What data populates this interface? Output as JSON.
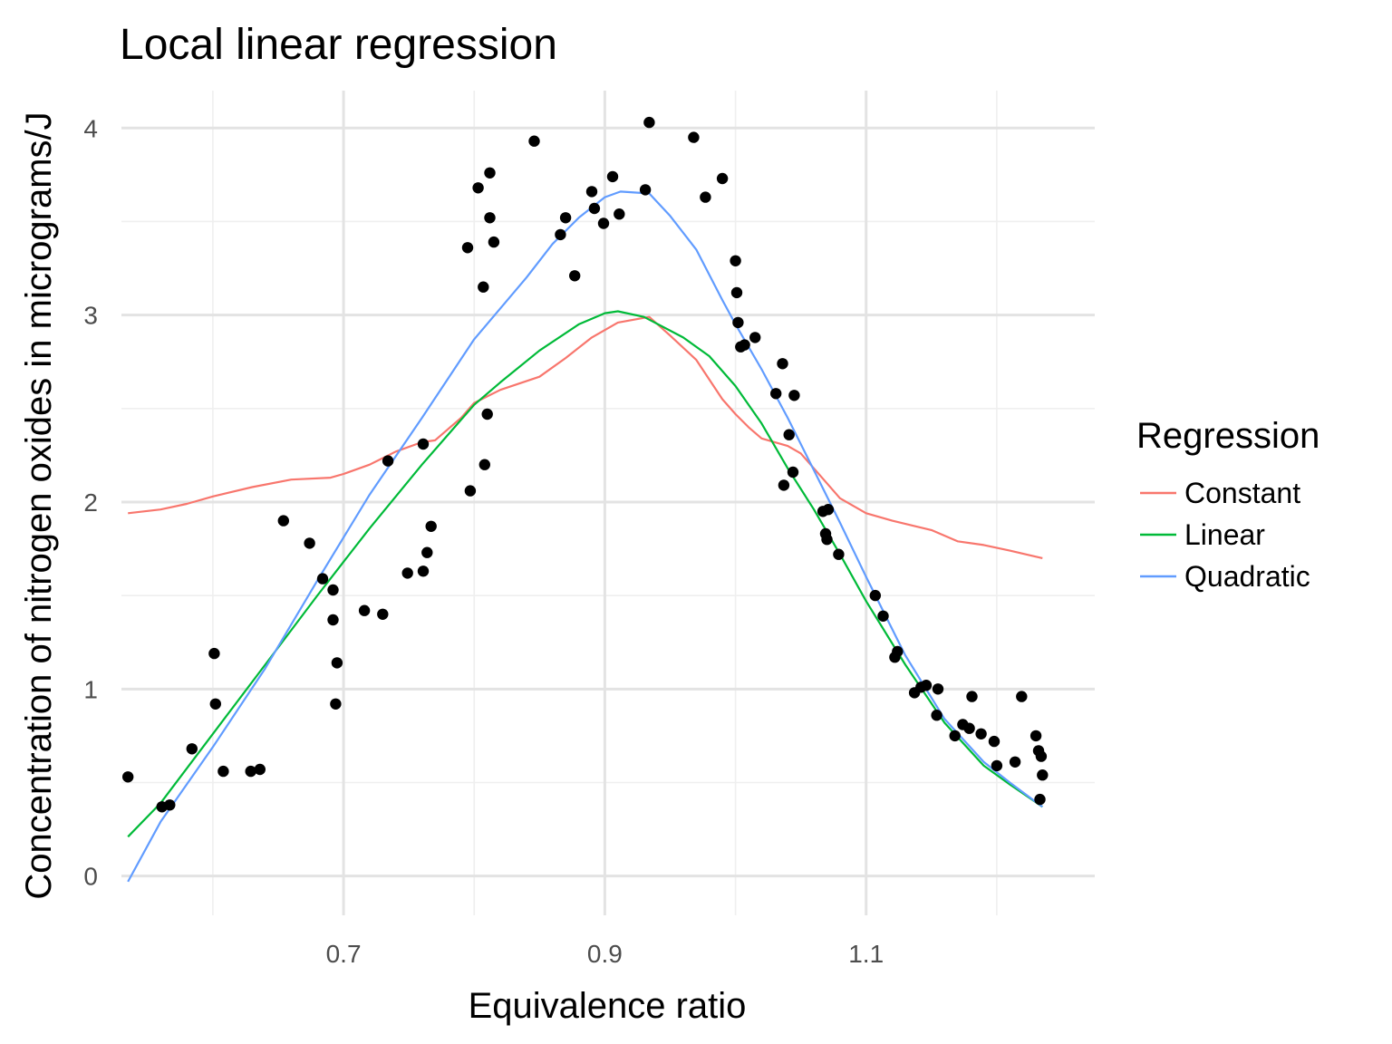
{
  "chart_data": {
    "type": "scatter",
    "title": "Local linear regression",
    "xlabel": "Equivalence ratio",
    "ylabel": "Concentration of nitrogen oxides in micrograms/J",
    "xlim": [
      0.53,
      1.275
    ],
    "ylim": [
      -0.21,
      4.2
    ],
    "x_ticks": [
      {
        "value": 0.7,
        "label": "0.7"
      },
      {
        "value": 0.9,
        "label": "0.9"
      },
      {
        "value": 1.1,
        "label": "1.1"
      }
    ],
    "x_minor": [
      0.6,
      0.8,
      1.0,
      1.2
    ],
    "y_ticks": [
      {
        "value": 0,
        "label": "0"
      },
      {
        "value": 1,
        "label": "1"
      },
      {
        "value": 2,
        "label": "2"
      },
      {
        "value": 3,
        "label": "3"
      },
      {
        "value": 4,
        "label": "4"
      }
    ],
    "y_minor": [
      0.5,
      1.5,
      2.5,
      3.5
    ],
    "grid": true,
    "legend": {
      "title": "Regression",
      "position": "right",
      "entries": [
        {
          "label": "Constant",
          "color": "#f8766d"
        },
        {
          "label": "Linear",
          "color": "#00ba38"
        },
        {
          "label": "Quadratic",
          "color": "#619cff"
        }
      ]
    },
    "points": {
      "x": [
        0.535,
        0.561,
        0.567,
        0.584,
        0.601,
        0.602,
        0.608,
        0.629,
        0.636,
        0.654,
        0.674,
        0.684,
        0.692,
        0.692,
        0.695,
        0.694,
        0.716,
        0.73,
        0.734,
        0.749,
        0.761,
        0.761,
        0.764,
        0.767,
        0.795,
        0.797,
        0.803,
        0.807,
        0.808,
        0.81,
        0.812,
        0.812,
        0.815,
        0.846,
        0.866,
        0.87,
        0.877,
        0.89,
        0.892,
        0.899,
        0.906,
        0.911,
        0.931,
        0.934,
        0.968,
        0.977,
        0.99,
        1.0,
        1.001,
        1.002,
        1.004,
        1.007,
        1.015,
        1.031,
        1.036,
        1.037,
        1.041,
        1.044,
        1.045,
        1.067,
        1.069,
        1.07,
        1.071,
        1.079,
        1.107,
        1.113,
        1.122,
        1.124,
        1.137,
        1.142,
        1.146,
        1.154,
        1.155,
        1.168,
        1.174,
        1.179,
        1.181,
        1.188,
        1.198,
        1.2,
        1.214,
        1.219,
        1.23,
        1.232,
        1.233,
        1.234,
        1.235
      ],
      "y": [
        0.53,
        0.37,
        0.38,
        0.68,
        1.19,
        0.92,
        0.56,
        0.56,
        0.57,
        1.9,
        1.78,
        1.59,
        1.37,
        1.53,
        1.14,
        0.92,
        1.42,
        1.4,
        2.22,
        1.62,
        1.63,
        2.31,
        1.73,
        1.87,
        3.36,
        2.06,
        3.68,
        3.15,
        2.2,
        2.47,
        3.76,
        3.52,
        3.39,
        3.93,
        3.43,
        3.52,
        3.21,
        3.66,
        3.57,
        3.49,
        3.74,
        3.54,
        3.67,
        4.03,
        3.95,
        3.63,
        3.73,
        3.29,
        3.12,
        2.96,
        2.83,
        2.84,
        2.88,
        2.58,
        2.74,
        2.09,
        2.36,
        2.16,
        2.57,
        1.95,
        1.83,
        1.8,
        1.96,
        1.72,
        1.5,
        1.39,
        1.17,
        1.2,
        0.98,
        1.01,
        1.02,
        0.86,
        1.0,
        0.75,
        0.81,
        0.79,
        0.96,
        0.76,
        0.72,
        0.59,
        0.61,
        0.96,
        0.75,
        0.67,
        0.41,
        0.64,
        0.54
      ]
    },
    "series": [
      {
        "name": "Constant",
        "color": "#f8766d",
        "x": [
          0.535,
          0.56,
          0.58,
          0.6,
          0.63,
          0.66,
          0.69,
          0.7,
          0.72,
          0.74,
          0.76,
          0.77,
          0.79,
          0.8,
          0.82,
          0.85,
          0.87,
          0.89,
          0.91,
          0.934,
          0.95,
          0.97,
          0.99,
          1.0,
          1.01,
          1.02,
          1.04,
          1.05,
          1.07,
          1.08,
          1.1,
          1.12,
          1.15,
          1.17,
          1.19,
          1.21,
          1.235
        ],
        "y": [
          1.94,
          1.96,
          1.99,
          2.03,
          2.08,
          2.12,
          2.13,
          2.15,
          2.2,
          2.27,
          2.32,
          2.33,
          2.45,
          2.53,
          2.6,
          2.67,
          2.77,
          2.88,
          2.96,
          2.99,
          2.89,
          2.76,
          2.55,
          2.47,
          2.4,
          2.34,
          2.3,
          2.26,
          2.1,
          2.02,
          1.94,
          1.9,
          1.85,
          1.79,
          1.77,
          1.74,
          1.7
        ]
      },
      {
        "name": "Linear",
        "color": "#00ba38",
        "x": [
          0.535,
          0.56,
          0.6,
          0.64,
          0.68,
          0.72,
          0.76,
          0.8,
          0.82,
          0.85,
          0.88,
          0.9,
          0.91,
          0.93,
          0.96,
          0.98,
          1.0,
          1.02,
          1.04,
          1.06,
          1.08,
          1.1,
          1.13,
          1.16,
          1.19,
          1.21,
          1.235
        ],
        "y": [
          0.21,
          0.39,
          0.76,
          1.13,
          1.5,
          1.86,
          2.2,
          2.52,
          2.64,
          2.81,
          2.95,
          3.01,
          3.02,
          2.99,
          2.88,
          2.78,
          2.62,
          2.42,
          2.18,
          1.96,
          1.72,
          1.47,
          1.13,
          0.82,
          0.59,
          0.49,
          0.37
        ]
      },
      {
        "name": "Quadratic",
        "color": "#619cff",
        "x": [
          0.535,
          0.56,
          0.6,
          0.64,
          0.68,
          0.72,
          0.76,
          0.8,
          0.84,
          0.86,
          0.88,
          0.9,
          0.912,
          0.934,
          0.95,
          0.97,
          0.99,
          1.0,
          1.02,
          1.04,
          1.06,
          1.08,
          1.1,
          1.13,
          1.16,
          1.19,
          1.21,
          1.235
        ],
        "y": [
          -0.03,
          0.29,
          0.69,
          1.11,
          1.58,
          2.04,
          2.45,
          2.87,
          3.2,
          3.38,
          3.52,
          3.63,
          3.66,
          3.65,
          3.53,
          3.35,
          3.08,
          2.95,
          2.71,
          2.45,
          2.17,
          1.89,
          1.6,
          1.18,
          0.84,
          0.61,
          0.5,
          0.37
        ]
      }
    ]
  }
}
